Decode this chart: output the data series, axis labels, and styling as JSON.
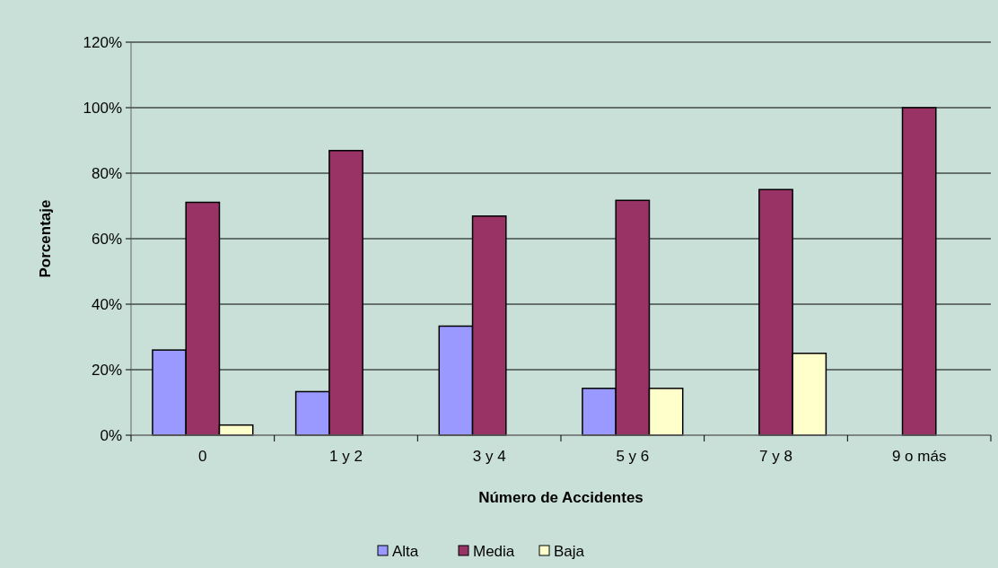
{
  "chart_data": {
    "type": "bar",
    "xlabel": "Número de Accidentes",
    "ylabel": "Porcentaje",
    "categories": [
      "0",
      "1 y 2",
      "3 y 4",
      "5 y 6",
      "7 y 8",
      "9 o más"
    ],
    "series": [
      {
        "name": "Alta",
        "color": "#9999ff",
        "values": [
          26,
          13.3,
          33.3,
          14.3,
          0,
          0
        ]
      },
      {
        "name": "Media",
        "color": "#993366",
        "values": [
          71.1,
          86.9,
          66.9,
          71.7,
          75,
          100
        ]
      },
      {
        "name": "Baja",
        "color": "#ffffcc",
        "values": [
          3.1,
          0,
          0,
          14.3,
          25,
          0
        ]
      }
    ],
    "ylim": [
      0,
      120
    ],
    "yticks": [
      {
        "value": 0,
        "label": "0%"
      },
      {
        "value": 20,
        "label": "20%"
      },
      {
        "value": 40,
        "label": "40%"
      },
      {
        "value": 60,
        "label": "60%"
      },
      {
        "value": 80,
        "label": "80%"
      },
      {
        "value": 100,
        "label": "100%"
      },
      {
        "value": 120,
        "label": "120%"
      }
    ],
    "grid": "y",
    "legend": "bottom"
  }
}
